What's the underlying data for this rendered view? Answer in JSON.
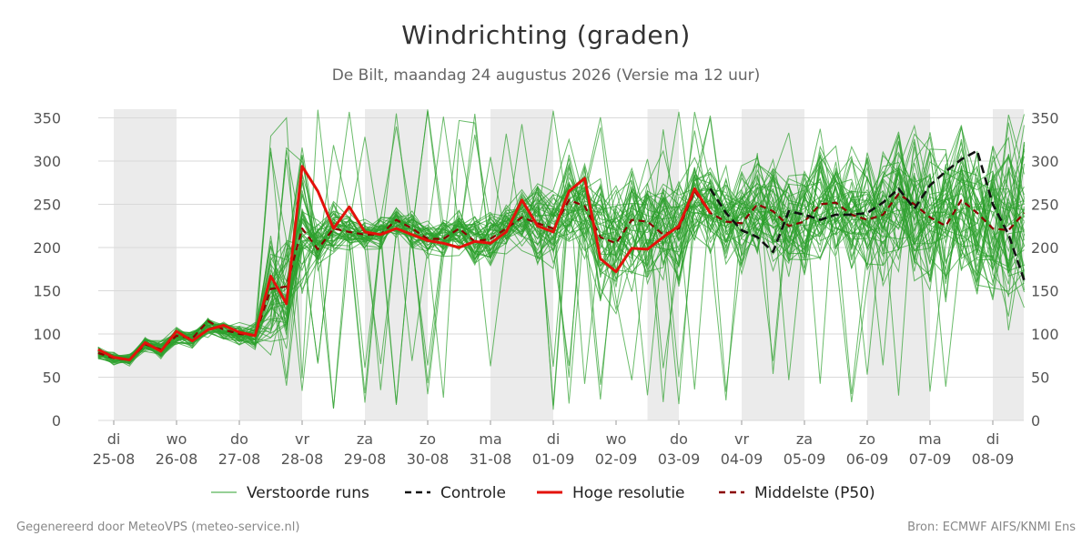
{
  "title": "Windrichting (graden)",
  "subtitle": "De Bilt, maandag 24 augustus 2026 (Versie ma 12 uur)",
  "footer": {
    "left": "Gegenereerd door MeteoVPS (meteo-service.nl)",
    "right": "Bron: ECMWF AIFS/KNMI Ens"
  },
  "chart_data": {
    "type": "line",
    "title": "Windrichting (graden)",
    "ylim": [
      0,
      360
    ],
    "yticks": [
      0,
      50,
      100,
      150,
      200,
      250,
      300,
      350
    ],
    "xlim": [
      -0.25,
      14.75
    ],
    "x_ticks": [
      {
        "day": "di",
        "date": "25-08"
      },
      {
        "day": "wo",
        "date": "26-08"
      },
      {
        "day": "do",
        "date": "27-08"
      },
      {
        "day": "vr",
        "date": "28-08"
      },
      {
        "day": "za",
        "date": "29-08"
      },
      {
        "day": "zo",
        "date": "30-08"
      },
      {
        "day": "ma",
        "date": "31-08"
      },
      {
        "day": "di",
        "date": "01-09"
      },
      {
        "day": "wo",
        "date": "02-09"
      },
      {
        "day": "do",
        "date": "03-09"
      },
      {
        "day": "vr",
        "date": "04-09"
      },
      {
        "day": "za",
        "date": "05-09"
      },
      {
        "day": "zo",
        "date": "06-09"
      },
      {
        "day": "ma",
        "date": "07-09"
      },
      {
        "day": "di",
        "date": "08-09"
      }
    ],
    "shaded_periods": [
      [
        0,
        1
      ],
      [
        2,
        3
      ],
      [
        4,
        5
      ],
      [
        6,
        7
      ],
      [
        8.5,
        9
      ],
      [
        10,
        11
      ],
      [
        12,
        13
      ],
      [
        14,
        14.5
      ]
    ],
    "grid": true,
    "legend_position": "bottom",
    "series": [
      {
        "name": "Hoge resolutie",
        "color": "#e3120b",
        "x": [
          -0.25,
          0,
          0.25,
          0.5,
          0.75,
          1,
          1.25,
          1.5,
          1.75,
          2,
          2.25,
          2.5,
          2.75,
          3,
          3.25,
          3.5,
          3.75,
          4,
          4.25,
          4.5,
          4.75,
          5,
          5.25,
          5.5,
          5.75,
          6,
          6.25,
          6.5,
          6.75,
          7,
          7.25,
          7.5,
          7.75,
          8,
          8.25,
          8.5,
          8.75,
          9,
          9.25,
          9.5
        ],
        "values": [
          82,
          73,
          70,
          90,
          80,
          103,
          92,
          105,
          110,
          102,
          98,
          167,
          135,
          294,
          265,
          222,
          247,
          218,
          215,
          222,
          215,
          208,
          205,
          200,
          207,
          205,
          218,
          255,
          225,
          218,
          265,
          280,
          187,
          172,
          199,
          198,
          212,
          225,
          268,
          240
        ]
      },
      {
        "name": "Controle",
        "color": "#111111",
        "x": [
          9.5,
          9.75,
          10,
          10.25,
          10.5,
          10.75,
          11,
          11.25,
          11.5,
          11.75,
          12,
          12.25,
          12.5,
          12.75,
          13,
          13.25,
          13.5,
          13.75,
          14,
          14.25,
          14.5
        ],
        "values": [
          268,
          240,
          220,
          212,
          195,
          242,
          238,
          232,
          238,
          238,
          240,
          252,
          268,
          245,
          272,
          288,
          302,
          312,
          250,
          215,
          162
        ]
      },
      {
        "name": "Middelste (P50)",
        "color": "#8b0000",
        "x": [
          -0.25,
          0,
          0.25,
          0.5,
          0.75,
          1,
          1.25,
          1.5,
          1.75,
          2,
          2.25,
          2.5,
          2.75,
          3,
          3.25,
          3.5,
          3.75,
          4,
          4.25,
          4.5,
          4.75,
          5,
          5.25,
          5.5,
          5.75,
          6,
          6.25,
          6.5,
          6.75,
          7,
          7.25,
          7.5,
          7.75,
          8,
          8.25,
          8.5,
          8.75,
          9,
          9.25,
          9.5,
          9.75,
          10,
          10.25,
          10.5,
          10.75,
          11,
          11.25,
          11.5,
          11.75,
          12,
          12.25,
          12.5,
          12.75,
          13,
          13.25,
          13.5,
          13.75,
          14,
          14.25,
          14.5
        ],
        "values": [
          78,
          72,
          70,
          88,
          82,
          98,
          95,
          115,
          105,
          100,
          98,
          152,
          155,
          222,
          198,
          222,
          218,
          215,
          215,
          232,
          222,
          210,
          210,
          222,
          207,
          210,
          222,
          235,
          228,
          222,
          255,
          248,
          212,
          205,
          232,
          230,
          215,
          222,
          265,
          240,
          230,
          228,
          250,
          242,
          225,
          230,
          250,
          252,
          238,
          232,
          238,
          262,
          250,
          235,
          225,
          255,
          240,
          222,
          220,
          240
        ]
      },
      {
        "name": "Verstoorde runs",
        "color": "#2ca02c",
        "ensemble": true,
        "x": [
          -0.25,
          0,
          0.25,
          0.5,
          0.75,
          1,
          1.25,
          1.5,
          1.75,
          2,
          2.25,
          2.5,
          2.75,
          3,
          3.25,
          3.5,
          3.75,
          4,
          4.25,
          4.5,
          4.75,
          5,
          5.25,
          5.5,
          5.75,
          6,
          6.25,
          6.5,
          6.75,
          7,
          7.25,
          7.5,
          7.75,
          8,
          8.25,
          8.5,
          8.75,
          9,
          9.25,
          9.5,
          9.75,
          10,
          10.25,
          10.5,
          10.75,
          11,
          11.25,
          11.5,
          11.75,
          12,
          12.25,
          12.5,
          12.75,
          13,
          13.25,
          13.5,
          13.75,
          14,
          14.25,
          14.5
        ],
        "center": [
          78,
          72,
          70,
          88,
          82,
          98,
          95,
          110,
          105,
          100,
          98,
          140,
          150,
          210,
          205,
          222,
          218,
          215,
          215,
          225,
          220,
          210,
          210,
          215,
          207,
          210,
          222,
          235,
          228,
          222,
          250,
          245,
          212,
          205,
          228,
          228,
          218,
          222,
          255,
          240,
          232,
          230,
          245,
          240,
          225,
          230,
          245,
          250,
          238,
          232,
          238,
          250,
          245,
          235,
          230,
          245,
          240,
          225,
          222,
          235
        ],
        "spread": [
          8,
          8,
          8,
          10,
          12,
          12,
          12,
          15,
          15,
          15,
          18,
          80,
          90,
          100,
          40,
          35,
          25,
          22,
          22,
          25,
          25,
          28,
          30,
          30,
          35,
          35,
          38,
          40,
          60,
          55,
          60,
          70,
          90,
          95,
          85,
          80,
          75,
          70,
          60,
          60,
          65,
          70,
          70,
          75,
          75,
          75,
          80,
          80,
          80,
          85,
          90,
          95,
          100,
          110,
          110,
          115,
          120,
          120,
          125,
          130
        ],
        "runs": 50
      }
    ]
  },
  "legend": [
    {
      "label": "Verstoorde runs",
      "style": "thin",
      "color": "#2ca02c"
    },
    {
      "label": "Controle",
      "style": "dashed",
      "color": "#111111"
    },
    {
      "label": "Hoge resolutie",
      "style": "solid",
      "color": "#e3120b"
    },
    {
      "label": "Middelste (P50)",
      "style": "dashed",
      "color": "#8b0000"
    }
  ]
}
